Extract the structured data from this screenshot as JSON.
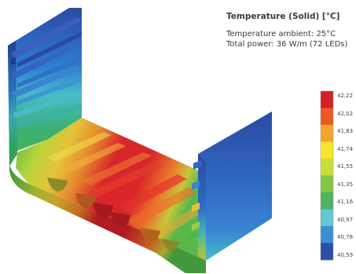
{
  "legend": {
    "title": "Temperature (Solid) [°C]",
    "ambient": "Temperature ambient: 25°C",
    "power": "Total power: 36 W/m (72 LEDs)",
    "ticks": [
      "42,22",
      "42,02",
      "41,83",
      "41,74",
      "41,55",
      "41,35",
      "41,16",
      "40,97",
      "40,78",
      "40,59"
    ],
    "colors": [
      "#d52028",
      "#ea5a24",
      "#f4a62a",
      "#f6e52b",
      "#c9de3a",
      "#83c545",
      "#4fb35f",
      "#67c7d2",
      "#3c8fd2",
      "#2f4ea5"
    ]
  },
  "colors": {
    "hot": "#d8262a",
    "warm": "#e9752b",
    "amber": "#d3b033",
    "yellow": "#e6e43a",
    "green": "#4ab64c",
    "cyan": "#47bcc8",
    "blue": "#2e7fd0",
    "navy": "#2b4aa3"
  }
}
